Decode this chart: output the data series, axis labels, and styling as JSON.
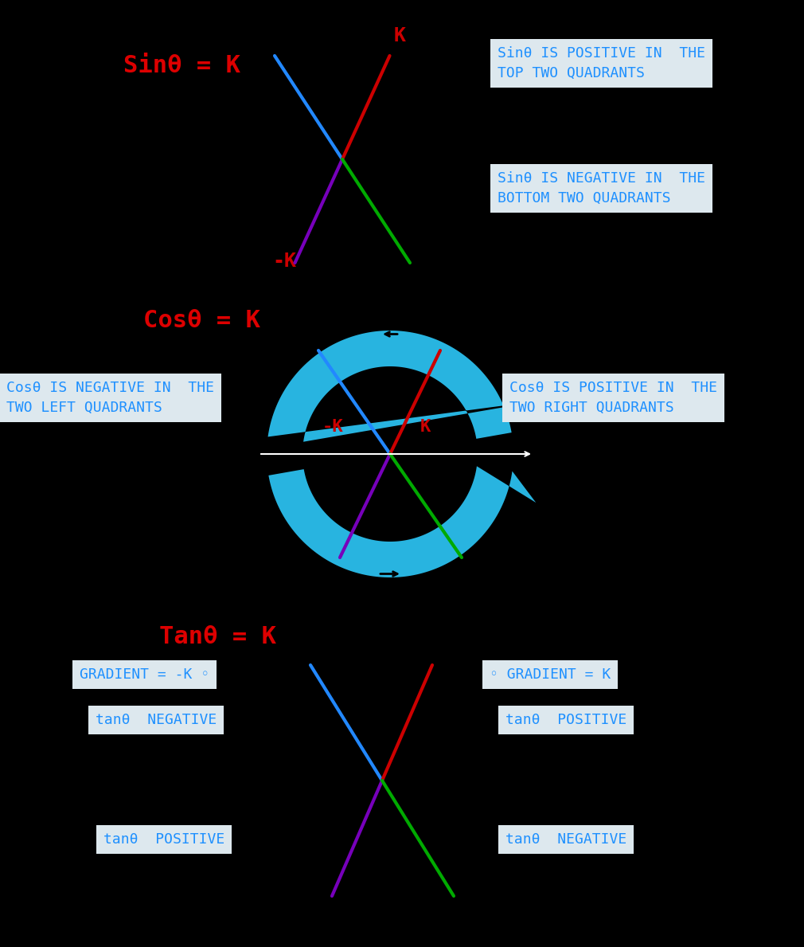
{
  "bg_color": "#000000",
  "sin_title": "Sinθ = K",
  "cos_title": "Cosθ = K",
  "tan_title": "Tanθ = K",
  "red_color": "#dd0000",
  "blue_color": "#1e90ff",
  "cyan_color": "#28b4e0",
  "line_blue": "#2288ff",
  "line_red": "#cc0000",
  "line_green": "#00aa00",
  "line_purple": "#7700bb",
  "box_bg": "#dde8ee",
  "K_label": "K",
  "negK_label": "-K",
  "sin_pos_text": "Sinθ IS POSITIVE IN  THE\nTOP TWO QUADRANTS",
  "sin_neg_text": "Sinθ IS NEGATIVE IN  THE\nBOTTOM TWO QUADRANTS",
  "cos_neg_text": "Cosθ IS NEGATIVE IN  THE\nTWO LEFT QUADRANTS",
  "cos_pos_text": "Cosθ IS POSITIVE IN  THE\nTWO RIGHT QUADRANTS",
  "tan_grad_neg_text": "GRADIENT = -K ◦",
  "tan_neg_text": "tanθ  NEGATIVE",
  "tan_pos_text1": "tanθ  POSITIVE",
  "tan_grad_pos_text": "◦ GRADIENT = K",
  "tan_pos_text2": "tanθ  POSITIVE",
  "tan_neg_text2": "tanθ  NEGATIVE"
}
